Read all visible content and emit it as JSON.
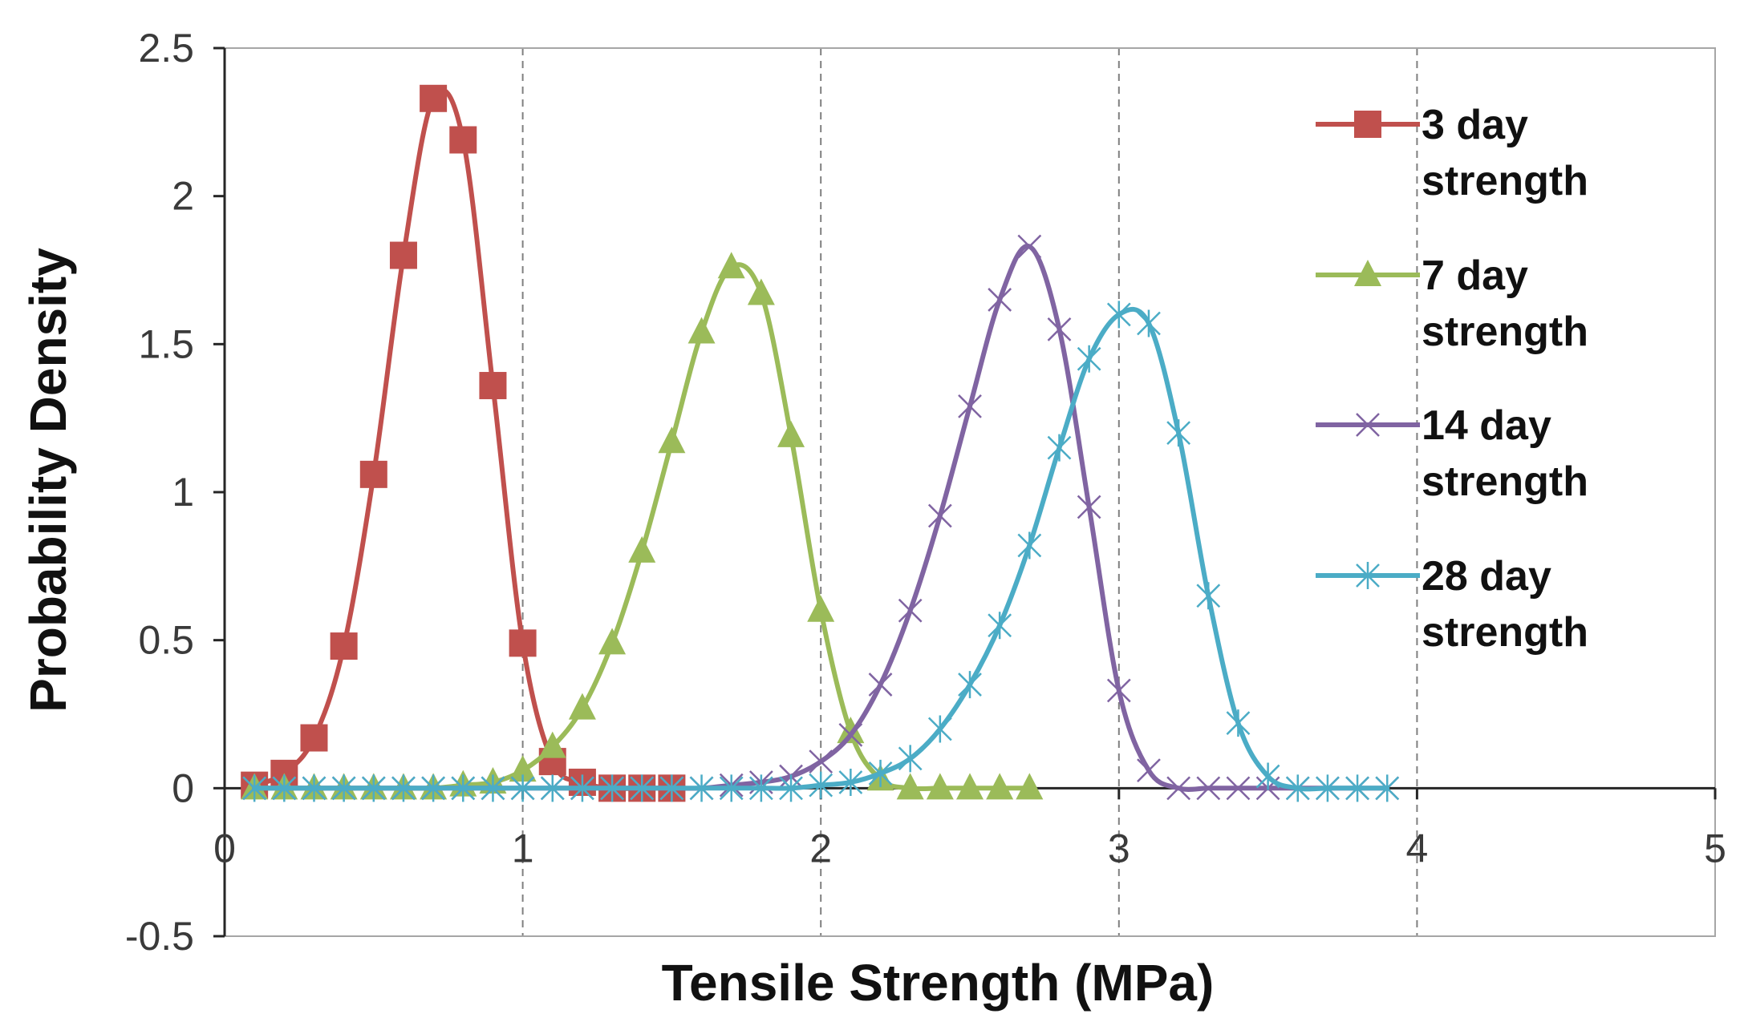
{
  "chart_data": {
    "type": "line",
    "title": "",
    "xlabel": "Tensile Strength (MPa)",
    "ylabel": "Probability Density",
    "xlim": [
      0,
      5
    ],
    "ylim": [
      -0.5,
      2.5
    ],
    "xticks": [
      "0",
      "1",
      "2",
      "3",
      "4",
      "5"
    ],
    "yticks": [
      "-0.5",
      "0",
      "0.5",
      "1",
      "1.5",
      "2",
      "2.5"
    ],
    "grid": "vertical dashed",
    "legend_position": "right",
    "series": [
      {
        "name": "3 day strength",
        "legend_line1": "3 day",
        "legend_line2": "strength",
        "marker": "square",
        "color": "#c0504d",
        "x": [
          0.1,
          0.2,
          0.3,
          0.4,
          0.5,
          0.6,
          0.7,
          0.8,
          0.9,
          1.0,
          1.1,
          1.2,
          1.3,
          1.4,
          1.5
        ],
        "y": [
          0.01,
          0.05,
          0.17,
          0.48,
          1.06,
          1.8,
          2.33,
          2.19,
          1.36,
          0.49,
          0.09,
          0.02,
          0.0,
          0.0,
          0.0
        ]
      },
      {
        "name": "7 day strength",
        "legend_line1": "7 day",
        "legend_line2": "strength",
        "marker": "triangle",
        "color": "#9bbb59",
        "x": [
          0.1,
          0.2,
          0.3,
          0.4,
          0.5,
          0.6,
          0.7,
          0.8,
          0.9,
          1.0,
          1.1,
          1.2,
          1.3,
          1.4,
          1.5,
          1.6,
          1.7,
          1.8,
          1.9,
          2.0,
          2.1,
          2.2,
          2.3,
          2.4,
          2.5,
          2.6,
          2.7
        ],
        "y": [
          0,
          0,
          0,
          0,
          0,
          0,
          0.0,
          0.01,
          0.02,
          0.06,
          0.14,
          0.27,
          0.49,
          0.8,
          1.17,
          1.54,
          1.76,
          1.67,
          1.19,
          0.6,
          0.19,
          0.03,
          0.0,
          0,
          0,
          0,
          0
        ]
      },
      {
        "name": "14 day strength",
        "legend_line1": "14 day",
        "legend_line2": "strength",
        "marker": "x",
        "color": "#8064a2",
        "x": [
          0.1,
          0.2,
          0.3,
          0.4,
          0.5,
          0.6,
          0.7,
          0.8,
          0.9,
          1.0,
          1.1,
          1.2,
          1.3,
          1.4,
          1.5,
          1.6,
          1.7,
          1.8,
          1.9,
          2.0,
          2.1,
          2.2,
          2.3,
          2.4,
          2.5,
          2.6,
          2.7,
          2.8,
          2.9,
          3.0,
          3.1,
          3.2,
          3.3,
          3.4,
          3.5,
          3.6,
          3.7,
          3.8,
          3.9
        ],
        "y": [
          0,
          0,
          0,
          0,
          0,
          0,
          0,
          0,
          0,
          0,
          0,
          0,
          0,
          0,
          0,
          0.0,
          0.01,
          0.02,
          0.04,
          0.09,
          0.18,
          0.35,
          0.6,
          0.92,
          1.29,
          1.65,
          1.83,
          1.55,
          0.95,
          0.33,
          0.06,
          0.0,
          0,
          0,
          0,
          0,
          0,
          0,
          0
        ]
      },
      {
        "name": "28 day strength",
        "legend_line1": "28 day",
        "legend_line2": "strength",
        "marker": "asterisk",
        "color": "#4bacc6",
        "x": [
          0.1,
          0.2,
          0.3,
          0.4,
          0.5,
          0.6,
          0.7,
          0.8,
          0.9,
          1.0,
          1.1,
          1.2,
          1.3,
          1.4,
          1.5,
          1.6,
          1.7,
          1.8,
          1.9,
          2.0,
          2.1,
          2.2,
          2.3,
          2.4,
          2.5,
          2.6,
          2.7,
          2.8,
          2.9,
          3.0,
          3.1,
          3.2,
          3.3,
          3.4,
          3.5,
          3.6,
          3.7,
          3.8,
          3.9
        ],
        "y": [
          0,
          0,
          0,
          0,
          0,
          0,
          0,
          0,
          0,
          0,
          0,
          0,
          0,
          0,
          0,
          0,
          0,
          0,
          0.0,
          0.01,
          0.02,
          0.05,
          0.1,
          0.2,
          0.35,
          0.55,
          0.82,
          1.15,
          1.45,
          1.6,
          1.57,
          1.2,
          0.65,
          0.22,
          0.04,
          0.0,
          0,
          0,
          0
        ]
      }
    ]
  }
}
